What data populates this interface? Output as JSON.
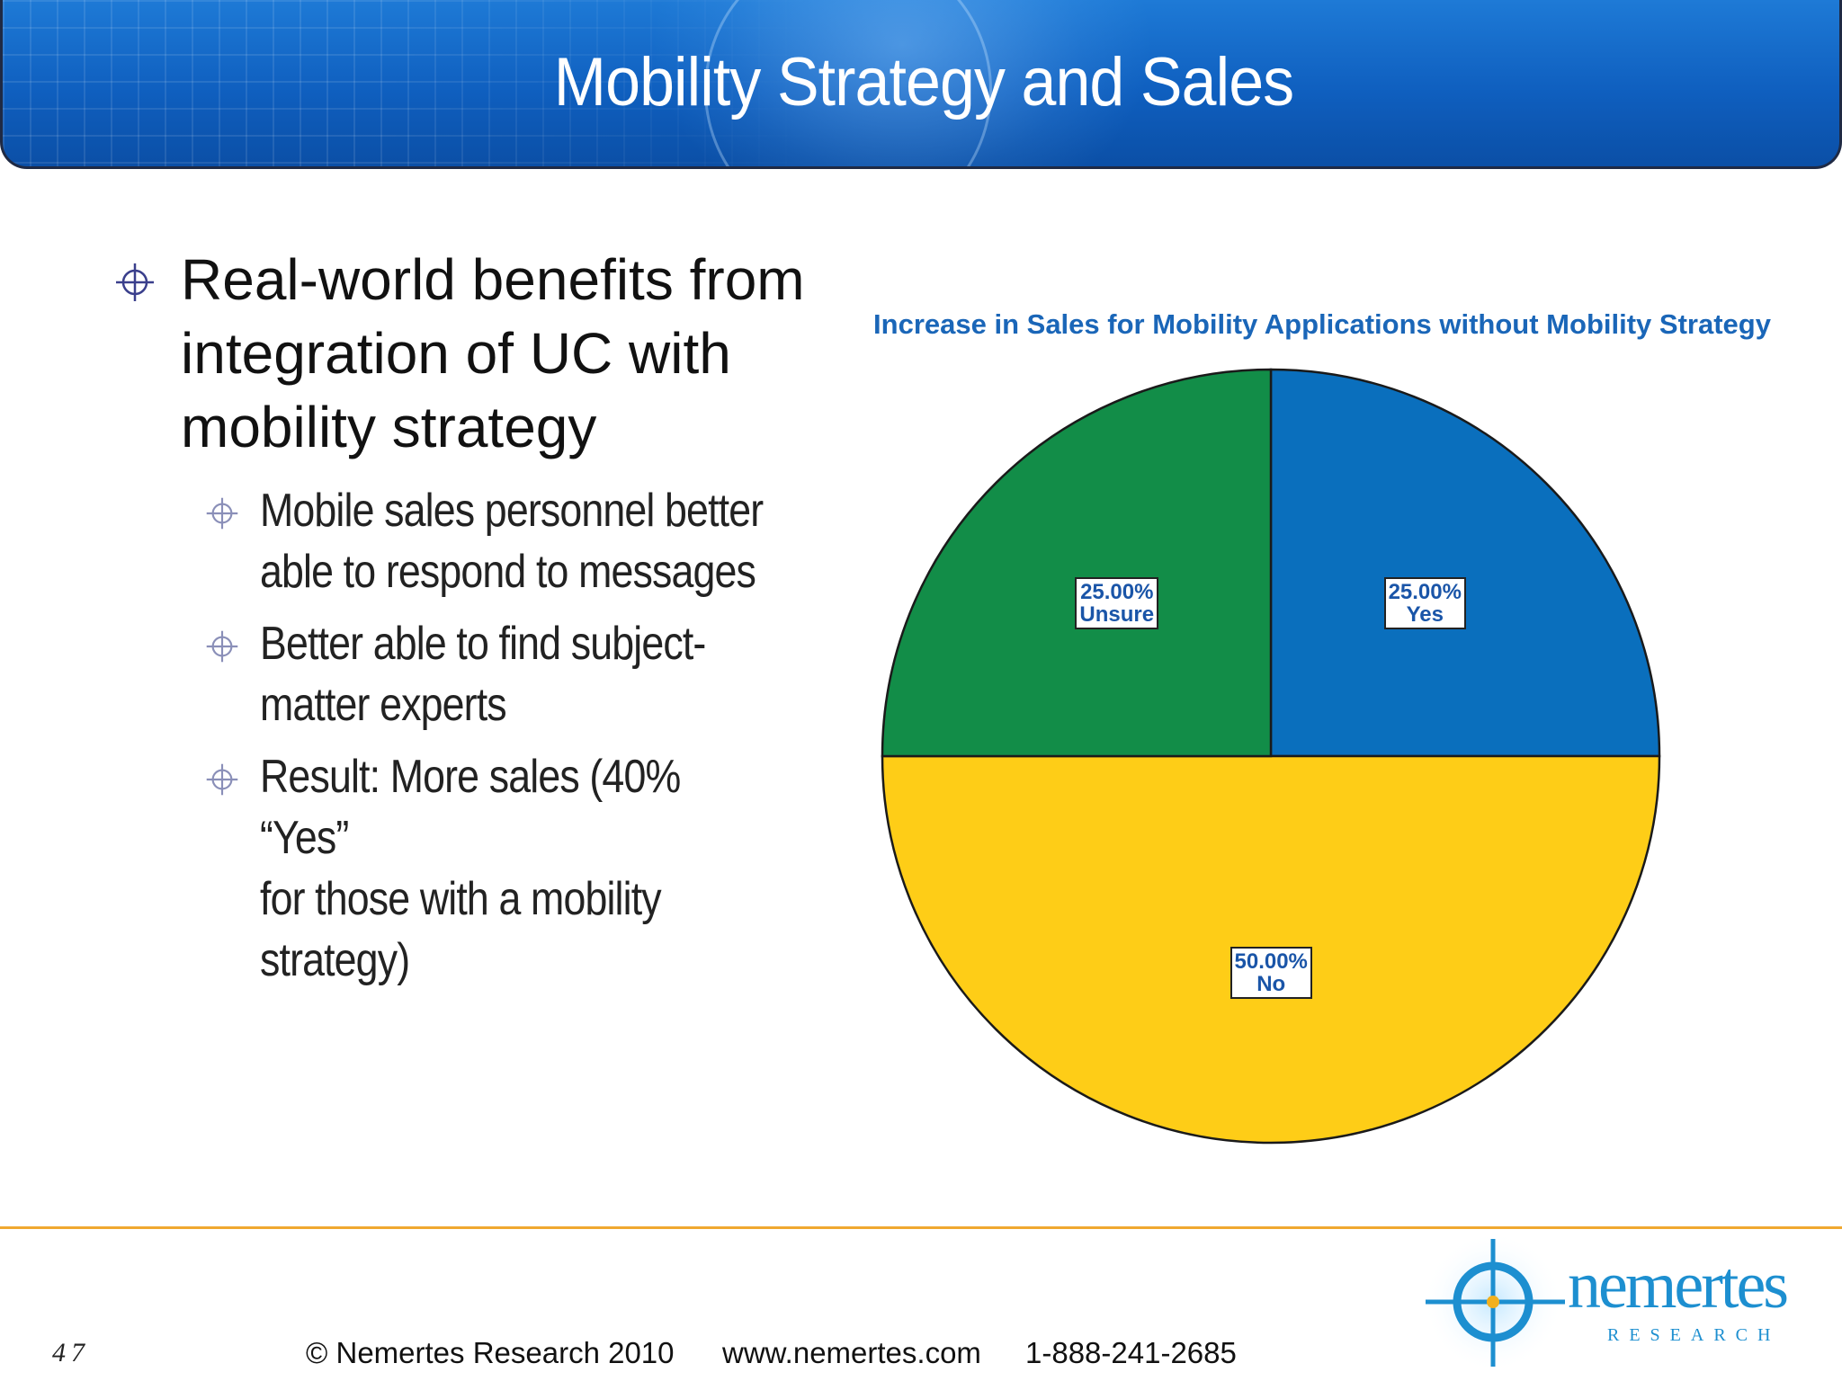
{
  "header": {
    "title": "Mobility Strategy and Sales"
  },
  "bullets": [
    {
      "text": "Real-world benefits from integration of UC with mobility strategy",
      "lines": [
        "Real-world benefits from",
        "integration of UC with",
        "mobility strategy"
      ],
      "children": [
        {
          "lines": [
            "Mobile sales personnel better",
            "able to respond to messages"
          ]
        },
        {
          "lines": [
            "Better able to find subject-",
            "matter experts"
          ]
        },
        {
          "lines": [
            "Result: More sales (40% “Yes”",
            "for those with a mobility",
            "strategy)"
          ]
        }
      ]
    }
  ],
  "chart_data": {
    "type": "pie",
    "title": "Increase in Sales for Mobility Applications without Mobility Strategy",
    "slices": [
      {
        "label": "Yes",
        "value": 25.0,
        "value_label": "25.00%",
        "color": "#0a6fbd"
      },
      {
        "label": "No",
        "value": 50.0,
        "value_label": "50.00%",
        "color": "#fecd17"
      },
      {
        "label": "Unsure",
        "value": 25.0,
        "value_label": "25.00%",
        "color": "#128d48"
      }
    ],
    "start_angle_deg": 0,
    "direction": "clockwise",
    "legend": "none"
  },
  "footer": {
    "page_number": "47",
    "copyright": "© Nemertes Research 2010",
    "url": "www.nemertes.com",
    "phone": "1-888-241-2685"
  },
  "logo": {
    "name": "nemertes",
    "subtitle": "RESEARCH"
  },
  "colors": {
    "header_blue": "#0f5fbf",
    "accent_orange": "#f0a830",
    "bullet_icon": "#3a3f8c"
  }
}
